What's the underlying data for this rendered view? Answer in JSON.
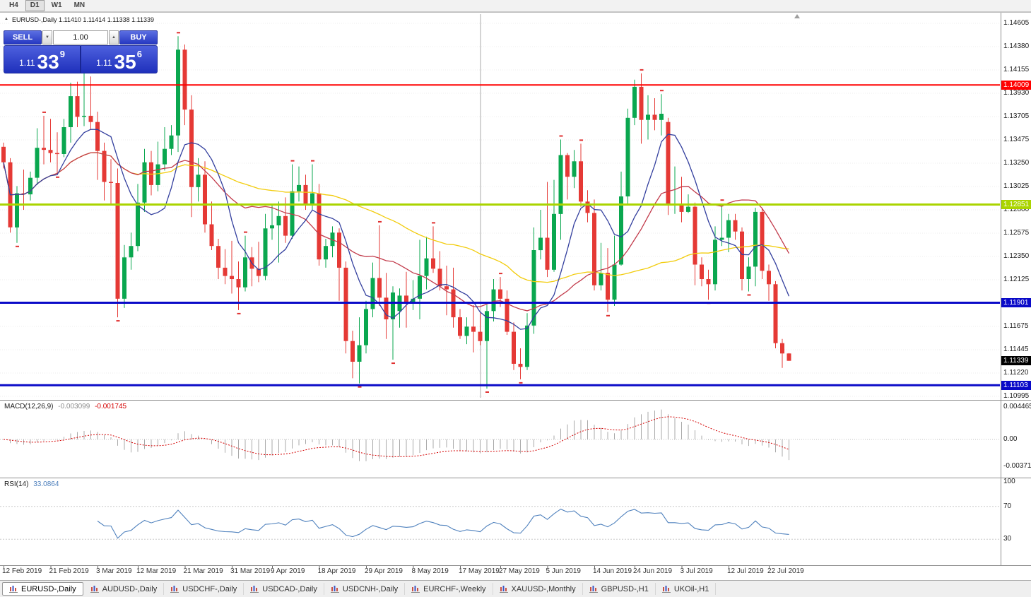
{
  "toolbar": {
    "timeframe_buttons": [
      "H4",
      "D1",
      "W1",
      "MN"
    ],
    "active": "D1"
  },
  "chart": {
    "title": "EURUSD-,Daily 1.11410 1.11414 1.11338 1.11339"
  },
  "icons": {
    "collapse_arrow": "▲",
    "spin_down": "▼",
    "spin_up": "▲"
  },
  "one_click": {
    "sell_label": "SELL",
    "buy_label": "BUY",
    "volume": "1.00",
    "sell_price": {
      "prefix": "1.11",
      "big": "33",
      "sup": "9"
    },
    "buy_price": {
      "prefix": "1.11",
      "big": "35",
      "sup": "6"
    }
  },
  "tabs": [
    {
      "label": "EURUSD-,Daily",
      "active": true
    },
    {
      "label": "AUDUSD-,Daily",
      "active": false
    },
    {
      "label": "USDCHF-,Daily",
      "active": false
    },
    {
      "label": "USDCAD-,Daily",
      "active": false
    },
    {
      "label": "USDCNH-,Daily",
      "active": false
    },
    {
      "label": "EURCHF-,Weekly",
      "active": false
    },
    {
      "label": "XAUUSD-,Monthly",
      "active": false
    },
    {
      "label": "GBPUSD-,H1",
      "active": false
    },
    {
      "label": "UKOil-,H1",
      "active": false
    }
  ],
  "chart_data": {
    "type": "candlestick",
    "symbol": "EURUSD-",
    "period": "Daily",
    "up_color": "#0aa74f",
    "down_color": "#e53935",
    "fractal_color": "#e03030",
    "y_scale": {
      "top": 1.14605,
      "bottom": 1.10995
    },
    "y_axis_labels": [
      "1.14605",
      "1.14380",
      "1.14155",
      "1.13930",
      "1.13705",
      "1.13475",
      "1.13250",
      "1.13025",
      "1.12800",
      "1.12575",
      "1.12350",
      "1.12125",
      "1.11900",
      "1.11675",
      "1.11445",
      "1.11220",
      "1.10995"
    ],
    "hlines": [
      {
        "value": 1.14009,
        "label": "1.14009",
        "color": "#ff0000",
        "width": 2
      },
      {
        "value": 1.12851,
        "label": "1.12851",
        "color": "#aad400",
        "width": 3
      },
      {
        "value": 1.11901,
        "label": "1.11901",
        "color": "#0a0ac8",
        "width": 3
      },
      {
        "value": 1.11103,
        "label": "1.11103",
        "color": "#0a0ac8",
        "width": 3
      }
    ],
    "vlines": [
      {
        "i": 71,
        "color": "#a9a9a9"
      }
    ],
    "current_price": {
      "value": 1.11339,
      "label": "1.11339",
      "bg": "#000000"
    },
    "moving_averages": [
      {
        "period": 50,
        "color": "#f2cc0c"
      },
      {
        "period": 20,
        "color": "#c23b4b"
      },
      {
        "period": 8,
        "color": "#333f9e"
      }
    ],
    "x_labels": [
      {
        "text": "12 Feb 2019",
        "i": 0
      },
      {
        "text": "21 Feb 2019",
        "i": 7
      },
      {
        "text": "3 Mar 2019",
        "i": 14
      },
      {
        "text": "12 Mar 2019",
        "i": 20
      },
      {
        "text": "21 Mar 2019",
        "i": 27
      },
      {
        "text": "31 Mar 2019",
        "i": 34
      },
      {
        "text": "9 Apr 2019",
        "i": 40
      },
      {
        "text": "18 Apr 2019",
        "i": 47
      },
      {
        "text": "29 Apr 2019",
        "i": 54
      },
      {
        "text": "8 May 2019",
        "i": 61
      },
      {
        "text": "17 May 2019",
        "i": 68
      },
      {
        "text": "27 May 2019",
        "i": 74
      },
      {
        "text": "5 Jun 2019",
        "i": 81
      },
      {
        "text": "14 Jun 2019",
        "i": 88
      },
      {
        "text": "24 Jun 2019",
        "i": 94
      },
      {
        "text": "3 Jul 2019",
        "i": 101
      },
      {
        "text": "12 Jul 2019",
        "i": 108
      },
      {
        "text": "22 Jul 2019",
        "i": 114
      }
    ],
    "macd": {
      "label": "MACD(12,26,9)",
      "value_main": "-0.003099",
      "value_signal": "-0.001745",
      "fast": 12,
      "slow": 26,
      "signal_period": 9,
      "axis_labels": [
        {
          "text": "0.004465",
          "v": 0.004465
        },
        {
          "text": "0.00",
          "v": 0
        },
        {
          "text": "-0.00371",
          "v": -0.00371
        }
      ],
      "hist_color": "#a9a9a9",
      "signal_color": "#d40000"
    },
    "rsi": {
      "label": "RSI(14)",
      "value": "33.0864",
      "period": 14,
      "levels": [
        70,
        30
      ],
      "axis_labels": [
        {
          "text": "100",
          "v": 100
        },
        {
          "text": "70",
          "v": 70
        },
        {
          "text": "30",
          "v": 30
        }
      ],
      "line_color": "#4f81bd",
      "level_color": "#c8c8c8"
    },
    "candles": [
      [
        1.1341,
        1.1345,
        1.132,
        1.1326
      ],
      [
        1.1326,
        1.133,
        1.1258,
        1.1263
      ],
      [
        1.1263,
        1.1303,
        1.1248,
        1.1296
      ],
      [
        1.1296,
        1.1319,
        1.128,
        1.1295
      ],
      [
        1.1295,
        1.1317,
        1.1289,
        1.1311
      ],
      [
        1.1311,
        1.1359,
        1.1304,
        1.134
      ],
      [
        1.134,
        1.1371,
        1.1324,
        1.1338
      ],
      [
        1.1338,
        1.1368,
        1.1326,
        1.1335
      ],
      [
        1.1335,
        1.1355,
        1.1315,
        1.1334
      ],
      [
        1.1334,
        1.1368,
        1.1331,
        1.136
      ],
      [
        1.136,
        1.1403,
        1.1345,
        1.139
      ],
      [
        1.139,
        1.1404,
        1.136,
        1.137
      ],
      [
        1.137,
        1.142,
        1.1361,
        1.1371
      ],
      [
        1.1371,
        1.1409,
        1.1358,
        1.1365
      ],
      [
        1.1365,
        1.1375,
        1.1309,
        1.1337
      ],
      [
        1.1337,
        1.1345,
        1.1289,
        1.1307
      ],
      [
        1.1307,
        1.1329,
        1.1285,
        1.1306
      ],
      [
        1.1306,
        1.132,
        1.1176,
        1.1194
      ],
      [
        1.1194,
        1.1246,
        1.1185,
        1.1234
      ],
      [
        1.1234,
        1.1258,
        1.1222,
        1.1245
      ],
      [
        1.1245,
        1.1305,
        1.124,
        1.1287
      ],
      [
        1.1287,
        1.1339,
        1.1278,
        1.1326
      ],
      [
        1.1326,
        1.1337,
        1.1294,
        1.1304
      ],
      [
        1.1304,
        1.1346,
        1.1298,
        1.1324
      ],
      [
        1.1324,
        1.136,
        1.1318,
        1.1339
      ],
      [
        1.1339,
        1.1362,
        1.1333,
        1.1352
      ],
      [
        1.1352,
        1.1448,
        1.1336,
        1.1435
      ],
      [
        1.1435,
        1.144,
        1.1362,
        1.1377
      ],
      [
        1.1377,
        1.1391,
        1.1273,
        1.1302
      ],
      [
        1.1302,
        1.133,
        1.1288,
        1.1314
      ],
      [
        1.1314,
        1.1327,
        1.1258,
        1.1266
      ],
      [
        1.1266,
        1.1288,
        1.1241,
        1.1245
      ],
      [
        1.1245,
        1.1252,
        1.1213,
        1.1224
      ],
      [
        1.1224,
        1.1242,
        1.1208,
        1.1216
      ],
      [
        1.1216,
        1.125,
        1.1199,
        1.1213
      ],
      [
        1.1213,
        1.123,
        1.1183,
        1.1205
      ],
      [
        1.1205,
        1.1255,
        1.1201,
        1.1234
      ],
      [
        1.1234,
        1.1244,
        1.1206,
        1.1223
      ],
      [
        1.1223,
        1.1249,
        1.121,
        1.1216
      ],
      [
        1.1216,
        1.1276,
        1.1212,
        1.1262
      ],
      [
        1.1262,
        1.1285,
        1.1251,
        1.1265
      ],
      [
        1.1265,
        1.1288,
        1.1229,
        1.1274
      ],
      [
        1.1274,
        1.1292,
        1.1248,
        1.1255
      ],
      [
        1.1255,
        1.1324,
        1.1252,
        1.1298
      ],
      [
        1.1298,
        1.1322,
        1.1288,
        1.1304
      ],
      [
        1.1304,
        1.1314,
        1.128,
        1.1285
      ],
      [
        1.1285,
        1.1324,
        1.128,
        1.1296
      ],
      [
        1.1296,
        1.1305,
        1.1226,
        1.1232
      ],
      [
        1.1232,
        1.1252,
        1.1224,
        1.1245
      ],
      [
        1.1245,
        1.1264,
        1.1234,
        1.1258
      ],
      [
        1.1258,
        1.1262,
        1.1192,
        1.1224
      ],
      [
        1.1224,
        1.123,
        1.1141,
        1.1153
      ],
      [
        1.1153,
        1.1163,
        1.1117,
        1.1133
      ],
      [
        1.1133,
        1.1176,
        1.1112,
        1.1149
      ],
      [
        1.1149,
        1.1192,
        1.1141,
        1.1184
      ],
      [
        1.1184,
        1.1229,
        1.1176,
        1.1214
      ],
      [
        1.1214,
        1.1265,
        1.1187,
        1.1195
      ],
      [
        1.1195,
        1.1219,
        1.1155,
        1.1174
      ],
      [
        1.1174,
        1.1206,
        1.1135,
        1.12
      ],
      [
        1.1182,
        1.1204,
        1.1166,
        1.1197
      ],
      [
        1.1197,
        1.122,
        1.1166,
        1.119
      ],
      [
        1.119,
        1.1212,
        1.1183,
        1.1194
      ],
      [
        1.1194,
        1.1251,
        1.1174,
        1.1216
      ],
      [
        1.1216,
        1.1254,
        1.1203,
        1.1233
      ],
      [
        1.1233,
        1.1264,
        1.1219,
        1.1223
      ],
      [
        1.1223,
        1.124,
        1.1202,
        1.1206
      ],
      [
        1.1206,
        1.1226,
        1.1178,
        1.1203
      ],
      [
        1.1203,
        1.1224,
        1.1166,
        1.1176
      ],
      [
        1.1176,
        1.1184,
        1.1155,
        1.1158
      ],
      [
        1.1158,
        1.1176,
        1.115,
        1.1167
      ],
      [
        1.1167,
        1.1188,
        1.1142,
        1.1162
      ],
      [
        1.1162,
        1.118,
        1.1149,
        1.1153
      ],
      [
        1.1153,
        1.1188,
        1.1107,
        1.1182
      ],
      [
        1.1182,
        1.1213,
        1.1172,
        1.1203
      ],
      [
        1.1203,
        1.1215,
        1.1186,
        1.1194
      ],
      [
        1.1194,
        1.1202,
        1.1159,
        1.1162
      ],
      [
        1.1162,
        1.1171,
        1.1125,
        1.1131
      ],
      [
        1.1131,
        1.1146,
        1.1116,
        1.1128
      ],
      [
        1.1128,
        1.118,
        1.1125,
        1.1168
      ],
      [
        1.1168,
        1.1263,
        1.116,
        1.1241
      ],
      [
        1.1241,
        1.128,
        1.1232,
        1.1253
      ],
      [
        1.1253,
        1.1307,
        1.1215,
        1.1222
      ],
      [
        1.1222,
        1.1309,
        1.122,
        1.1276
      ],
      [
        1.1276,
        1.1348,
        1.1251,
        1.1333
      ],
      [
        1.1333,
        1.1335,
        1.129,
        1.1312
      ],
      [
        1.1312,
        1.1338,
        1.1301,
        1.1327
      ],
      [
        1.1327,
        1.1344,
        1.1283,
        1.1288
      ],
      [
        1.1288,
        1.1299,
        1.1268,
        1.1277
      ],
      [
        1.1277,
        1.129,
        1.1202,
        1.1207
      ],
      [
        1.1207,
        1.1248,
        1.1202,
        1.1219
      ],
      [
        1.1219,
        1.1243,
        1.1181,
        1.1193
      ],
      [
        1.1193,
        1.1255,
        1.1187,
        1.1227
      ],
      [
        1.1227,
        1.1317,
        1.1226,
        1.1293
      ],
      [
        1.1293,
        1.1378,
        1.1285,
        1.1369
      ],
      [
        1.1369,
        1.1406,
        1.1362,
        1.1399
      ],
      [
        1.1399,
        1.1412,
        1.1344,
        1.1367
      ],
      [
        1.1367,
        1.1391,
        1.1348,
        1.1372
      ],
      [
        1.1372,
        1.1388,
        1.1357,
        1.1367
      ],
      [
        1.1367,
        1.1392,
        1.1352,
        1.1373
      ],
      [
        1.1365,
        1.1369,
        1.1275,
        1.1285
      ],
      [
        1.1285,
        1.1322,
        1.1276,
        1.1285
      ],
      [
        1.1285,
        1.1312,
        1.1268,
        1.1278
      ],
      [
        1.1278,
        1.1295,
        1.1277,
        1.1283
      ],
      [
        1.1283,
        1.1287,
        1.1207,
        1.1227
      ],
      [
        1.1227,
        1.1234,
        1.1206,
        1.1213
      ],
      [
        1.1213,
        1.1222,
        1.1193,
        1.1208
      ],
      [
        1.1208,
        1.1264,
        1.1202,
        1.1251
      ],
      [
        1.1251,
        1.1286,
        1.1245,
        1.1253
      ],
      [
        1.1253,
        1.1276,
        1.1239,
        1.127
      ],
      [
        1.127,
        1.1276,
        1.1251,
        1.1259
      ],
      [
        1.1259,
        1.1263,
        1.1202,
        1.1213
      ],
      [
        1.1213,
        1.1234,
        1.1201,
        1.1225
      ],
      [
        1.1225,
        1.1282,
        1.1206,
        1.1278
      ],
      [
        1.1278,
        1.1282,
        1.1213,
        1.1221
      ],
      [
        1.1221,
        1.1227,
        1.1192,
        1.1208
      ],
      [
        1.1208,
        1.1211,
        1.1146,
        1.1151
      ],
      [
        1.1151,
        1.1155,
        1.1127,
        1.1141
      ],
      [
        1.1141,
        1.11414,
        1.11338,
        1.11339
      ]
    ]
  }
}
